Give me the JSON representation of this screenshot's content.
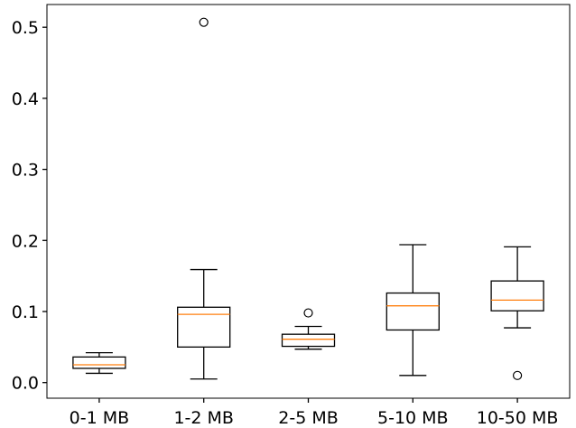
{
  "chart_data": {
    "type": "boxplot",
    "title": "",
    "xlabel": "",
    "ylabel": "",
    "ylim": [
      -0.022,
      0.532
    ],
    "yticks": [
      0.0,
      0.1,
      0.2,
      0.3,
      0.4,
      0.5
    ],
    "ytick_labels": [
      "0.0",
      "0.1",
      "0.2",
      "0.3",
      "0.4",
      "0.5"
    ],
    "grid": false,
    "legend": "none",
    "box_color": "#000000",
    "median_color": "#ff7f0e",
    "categories": [
      "0-1 MB",
      "1-2 MB",
      "2-5 MB",
      "5-10 MB",
      "10-50 MB"
    ],
    "boxes": [
      {
        "label": "0-1 MB",
        "whisker_low": 0.013,
        "q1": 0.02,
        "median": 0.025,
        "q3": 0.036,
        "whisker_high": 0.042,
        "outliers": []
      },
      {
        "label": "1-2 MB",
        "whisker_low": 0.005,
        "q1": 0.05,
        "median": 0.096,
        "q3": 0.106,
        "whisker_high": 0.159,
        "outliers": [
          0.507
        ]
      },
      {
        "label": "2-5 MB",
        "whisker_low": 0.047,
        "q1": 0.051,
        "median": 0.061,
        "q3": 0.068,
        "whisker_high": 0.079,
        "outliers": [
          0.098
        ]
      },
      {
        "label": "5-10 MB",
        "whisker_low": 0.01,
        "q1": 0.074,
        "median": 0.108,
        "q3": 0.126,
        "whisker_high": 0.194,
        "outliers": []
      },
      {
        "label": "10-50 MB",
        "whisker_low": 0.077,
        "q1": 0.101,
        "median": 0.116,
        "q3": 0.143,
        "whisker_high": 0.191,
        "outliers": [
          0.01
        ]
      }
    ]
  }
}
